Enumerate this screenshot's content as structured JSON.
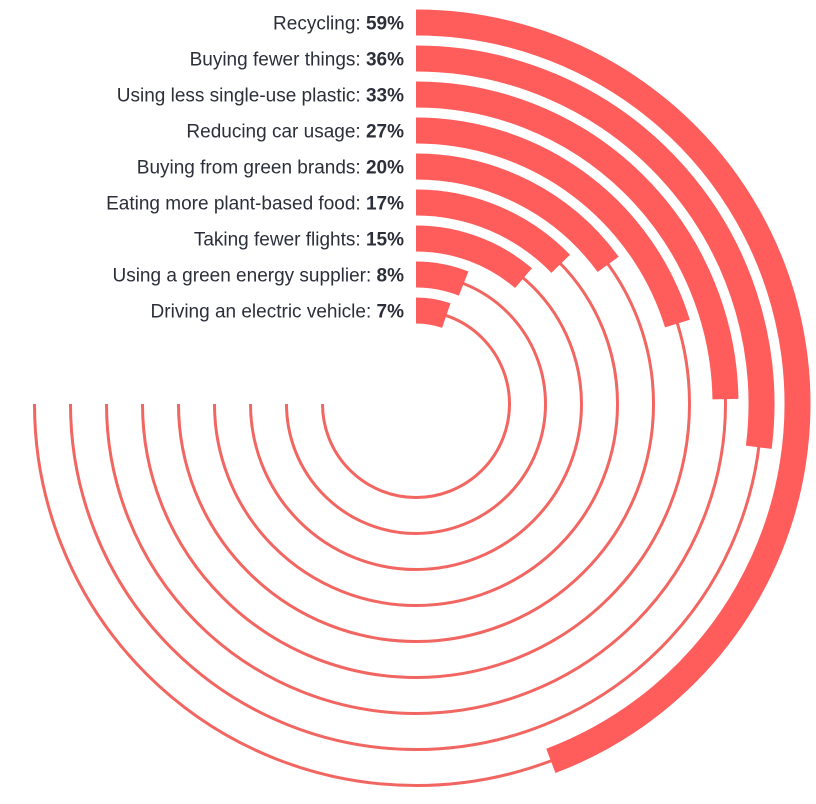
{
  "chart_data": {
    "type": "radial-bar",
    "max_value": 100,
    "colors": {
      "bar": "#ff5c5c",
      "track": "#f26662",
      "text": "#2c2f3a"
    },
    "title": "",
    "categories": [
      "Recycling",
      "Buying fewer things",
      "Using less single-use plastic",
      "Reducing car usage",
      "Buying from green brands",
      "Eating more plant-based food",
      "Taking fewer flights",
      "Using a green energy supplier",
      "Driving an electric vehicle"
    ],
    "values": [
      59,
      36,
      33,
      27,
      20,
      17,
      15,
      8,
      7
    ],
    "value_labels": [
      "59%",
      "36%",
      "33%",
      "27%",
      "20%",
      "17%",
      "15%",
      "8%",
      "7%"
    ]
  }
}
